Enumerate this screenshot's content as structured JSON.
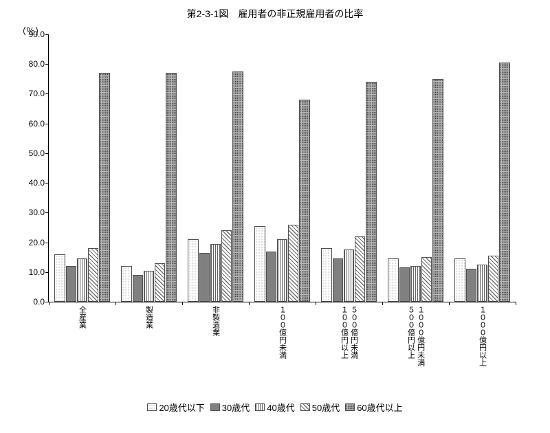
{
  "title": "第2-3-1図　雇用者の非正規雇用者の比率",
  "y_unit": "（％）",
  "chart": {
    "type": "bar",
    "ylim": [
      0,
      90
    ],
    "ytick_step": 10,
    "background_color": "#ffffff",
    "border_color": "#000000",
    "bar_border_color": "#505050",
    "series": [
      {
        "label": "20歳代以下",
        "pattern": "pat-dots-sparse"
      },
      {
        "label": "30歳代",
        "pattern": "pat-solid-gray"
      },
      {
        "label": "40歳代",
        "pattern": "pat-vstripe"
      },
      {
        "label": "50歳代",
        "pattern": "pat-diag"
      },
      {
        "label": "60歳代以上",
        "pattern": "pat-dots-dense"
      }
    ],
    "categories": [
      {
        "label_lines": [
          "全産業"
        ],
        "values": [
          16,
          12,
          14.5,
          18,
          77
        ]
      },
      {
        "label_lines": [
          "製造業"
        ],
        "values": [
          12,
          9,
          10.5,
          13,
          77
        ]
      },
      {
        "label_lines": [
          "非製造業"
        ],
        "values": [
          21,
          16.5,
          19.5,
          24,
          77.5
        ]
      },
      {
        "label_lines": [
          "１００億円未満"
        ],
        "values": [
          25.5,
          17,
          21,
          26,
          68
        ]
      },
      {
        "label_lines": [
          "１００億円以上",
          "５００億円未満"
        ],
        "values": [
          18,
          14.5,
          17.5,
          22,
          74
        ]
      },
      {
        "label_lines": [
          "５００億円以上",
          "１０００億円未満"
        ],
        "values": [
          14.5,
          11.5,
          12,
          15,
          75
        ]
      },
      {
        "label_lines": [
          "１０００億円以上"
        ],
        "values": [
          14.5,
          11,
          12.5,
          15.5,
          80.5
        ]
      }
    ]
  },
  "y_tick_labels": [
    "0.0",
    "10.0",
    "20.0",
    "30.0",
    "40.0",
    "50.0",
    "60.0",
    "70.0",
    "80.0",
    "90.0"
  ]
}
